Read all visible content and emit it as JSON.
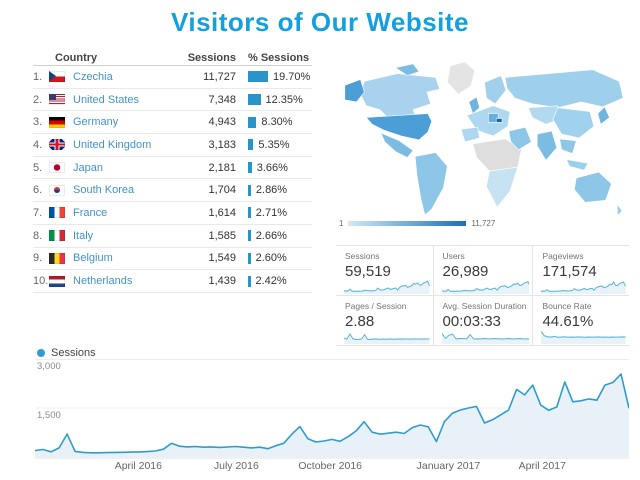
{
  "title": "Visitors of Our Website",
  "colors": {
    "title": "#149fdf",
    "link": "#4292c9",
    "bar": "#2894ca",
    "line": "#2f9ccd",
    "spark": "#5fb4dc",
    "map_min": "#d3e9f7",
    "map_max": "#1a70b4"
  },
  "table": {
    "headers": {
      "country": "Country",
      "sessions": "Sessions",
      "pct": "% Sessions"
    },
    "rows": [
      {
        "rank": "1.",
        "flag": "cz",
        "country": "Czechia",
        "sessions": "11,727",
        "pct": "19.70%",
        "pct_value": 19.7
      },
      {
        "rank": "2.",
        "flag": "us",
        "country": "United States",
        "sessions": "7,348",
        "pct": "12.35%",
        "pct_value": 12.35
      },
      {
        "rank": "3.",
        "flag": "de",
        "country": "Germany",
        "sessions": "4,943",
        "pct": "8.30%",
        "pct_value": 8.3
      },
      {
        "rank": "4.",
        "flag": "gb",
        "country": "United Kingdom",
        "sessions": "3,183",
        "pct": "5.35%",
        "pct_value": 5.35
      },
      {
        "rank": "5.",
        "flag": "jp",
        "country": "Japan",
        "sessions": "2,181",
        "pct": "3.66%",
        "pct_value": 3.66
      },
      {
        "rank": "6.",
        "flag": "kr",
        "country": "South Korea",
        "sessions": "1,704",
        "pct": "2.86%",
        "pct_value": 2.86
      },
      {
        "rank": "7.",
        "flag": "fr",
        "country": "France",
        "sessions": "1,614",
        "pct": "2.71%",
        "pct_value": 2.71
      },
      {
        "rank": "8.",
        "flag": "it",
        "country": "Italy",
        "sessions": "1,585",
        "pct": "2.66%",
        "pct_value": 2.66
      },
      {
        "rank": "9.",
        "flag": "be",
        "country": "Belgium",
        "sessions": "1,549",
        "pct": "2.60%",
        "pct_value": 2.6
      },
      {
        "rank": "10.",
        "flag": "nl",
        "country": "Netherlands",
        "sessions": "1,439",
        "pct": "2.42%",
        "pct_value": 2.42
      }
    ]
  },
  "map": {
    "legend_min": "1",
    "legend_max": "11,727"
  },
  "cards": [
    {
      "label": "Sessions",
      "value": "59,519",
      "spark": [
        8,
        9,
        6,
        22,
        7,
        5,
        5,
        6,
        6,
        7,
        10,
        14,
        10,
        10,
        9,
        10,
        12,
        30,
        18,
        15,
        16,
        24,
        31,
        22,
        21,
        28,
        30,
        15,
        36,
        45,
        48,
        50,
        35,
        42,
        48,
        65,
        60,
        70,
        53,
        55,
        70,
        74,
        83,
        48
      ]
    },
    {
      "label": "Users",
      "value": "26,989",
      "spark": [
        7,
        8,
        6,
        20,
        6,
        5,
        5,
        6,
        6,
        7,
        9,
        12,
        10,
        9,
        9,
        10,
        13,
        27,
        17,
        15,
        15,
        22,
        30,
        21,
        20,
        27,
        29,
        14,
        34,
        43,
        46,
        48,
        34,
        39,
        46,
        62,
        58,
        68,
        51,
        53,
        68,
        72,
        80,
        46
      ]
    },
    {
      "label": "Pageviews",
      "value": "171,574",
      "spark": [
        6,
        7,
        5,
        18,
        6,
        5,
        5,
        5,
        6,
        7,
        8,
        11,
        9,
        9,
        8,
        10,
        12,
        25,
        16,
        14,
        15,
        20,
        28,
        20,
        19,
        26,
        28,
        14,
        32,
        40,
        44,
        46,
        33,
        38,
        44,
        60,
        56,
        78,
        49,
        51,
        66,
        70,
        76,
        44
      ]
    },
    {
      "label": "Pages / Session",
      "value": "2.88",
      "spark": [
        30,
        22,
        62,
        26,
        20,
        19,
        24,
        58,
        21,
        20,
        22,
        23,
        21,
        22,
        21,
        23,
        22,
        21,
        23,
        22,
        24,
        23,
        22,
        23,
        24,
        23,
        22,
        24,
        23,
        24
      ]
    },
    {
      "label": "Avg. Session Duration",
      "value": "00:03:33",
      "spark": [
        65,
        28,
        52,
        60,
        24,
        26,
        27,
        25,
        56,
        23,
        25,
        24,
        26,
        25,
        24,
        26,
        25,
        24,
        25,
        26,
        24,
        25,
        26,
        25,
        24,
        25
      ]
    },
    {
      "label": "Bounce Rate",
      "value": "44.61%",
      "spark": [
        82,
        48,
        40,
        38,
        43,
        36,
        38,
        40,
        36,
        38,
        37,
        39,
        38,
        36,
        38,
        37,
        38,
        39,
        37,
        38,
        36,
        38,
        37,
        38,
        39,
        38
      ]
    }
  ],
  "timeline": {
    "legend": "Sessions",
    "y_tick_top": "3,000",
    "y_tick_mid": "1,500"
  },
  "chart_data": [
    {
      "type": "area",
      "title": "Sessions over time (weekly)",
      "ylabel": "Sessions",
      "ylim": [
        0,
        3000
      ],
      "y_ticks": [
        "1,500",
        "3,000"
      ],
      "grid": "horizontal",
      "legend_position": "top-left",
      "x_ticks": [
        {
          "label": "April 2016",
          "pos": 0.174
        },
        {
          "label": "July 2016",
          "pos": 0.339
        },
        {
          "label": "October 2016",
          "pos": 0.497
        },
        {
          "label": "January 2017",
          "pos": 0.696
        },
        {
          "label": "April 2017",
          "pos": 0.854
        }
      ],
      "series": [
        {
          "name": "Sessions",
          "values": [
            200,
            230,
            160,
            280,
            700,
            170,
            140,
            130,
            130,
            135,
            140,
            145,
            150,
            155,
            165,
            185,
            240,
            420,
            330,
            310,
            320,
            300,
            310,
            295,
            305,
            320,
            300,
            280,
            300,
            255,
            345,
            420,
            700,
            930,
            560,
            460,
            490,
            540,
            480,
            620,
            800,
            1080,
            760,
            700,
            730,
            760,
            720,
            900,
            980,
            920,
            470,
            1080,
            1340,
            1440,
            1500,
            1550,
            1040,
            1140,
            1290,
            1440,
            2070,
            1900,
            2200,
            1590,
            1430,
            1530,
            2300,
            1690,
            1720,
            1780,
            1740,
            2200,
            2280,
            2540,
            1490
          ]
        }
      ]
    },
    {
      "type": "choropleth_map",
      "title": "Sessions by country",
      "metric": "Sessions",
      "legend": {
        "min": 1,
        "max": 11727
      },
      "countries": [
        {
          "name": "Czechia",
          "value": 11727
        },
        {
          "name": "United States",
          "value": 7348
        },
        {
          "name": "Germany",
          "value": 4943
        },
        {
          "name": "United Kingdom",
          "value": 3183
        },
        {
          "name": "Japan",
          "value": 2181
        },
        {
          "name": "South Korea",
          "value": 1704
        },
        {
          "name": "France",
          "value": 1614
        },
        {
          "name": "Italy",
          "value": 1585
        },
        {
          "name": "Belgium",
          "value": 1549
        },
        {
          "name": "Netherlands",
          "value": 1439
        }
      ]
    }
  ]
}
